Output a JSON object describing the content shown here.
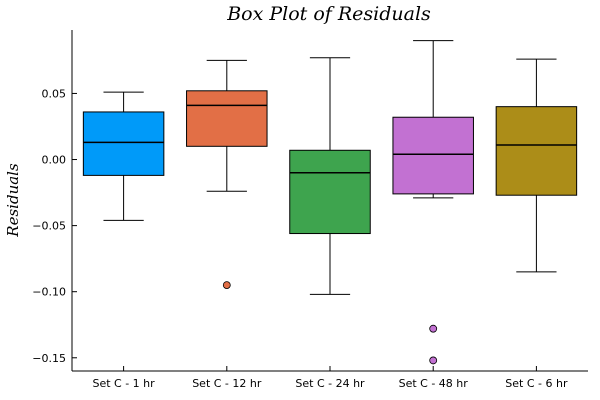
{
  "chart_data": {
    "type": "box",
    "title": "Box Plot of Residuals",
    "xlabel": "",
    "ylabel": "Residuals",
    "ylim": [
      -0.16,
      0.098
    ],
    "yticks": [
      -0.15,
      -0.1,
      -0.05,
      0.0,
      0.05
    ],
    "ytick_labels": [
      "−0.15",
      "−0.10",
      "−0.05",
      "0.00",
      "0.05"
    ],
    "grid": false,
    "legend": "none",
    "categories": [
      "Set C - 1 hr",
      "Set C - 12 hr",
      "Set C - 24 hr",
      "Set C - 48 hr",
      "Set C - 6 hr"
    ],
    "boxes": [
      {
        "color": "#009af9",
        "whisker_low": -0.046,
        "q1": -0.012,
        "median": 0.013,
        "q3": 0.036,
        "whisker_high": 0.051,
        "outliers": []
      },
      {
        "color": "#e26f46",
        "whisker_low": -0.024,
        "q1": 0.01,
        "median": 0.041,
        "q3": 0.052,
        "whisker_high": 0.075,
        "outliers": [
          -0.095
        ]
      },
      {
        "color": "#3ea44e",
        "whisker_low": -0.102,
        "q1": -0.056,
        "median": -0.01,
        "q3": 0.007,
        "whisker_high": 0.077,
        "outliers": []
      },
      {
        "color": "#c271d2",
        "whisker_low": -0.029,
        "q1": -0.026,
        "median": 0.004,
        "q3": 0.032,
        "whisker_high": 0.09,
        "outliers": [
          -0.128,
          -0.152
        ]
      },
      {
        "color": "#ac8d18",
        "whisker_low": -0.085,
        "q1": -0.027,
        "median": 0.011,
        "q3": 0.04,
        "whisker_high": 0.076,
        "outliers": []
      }
    ]
  }
}
